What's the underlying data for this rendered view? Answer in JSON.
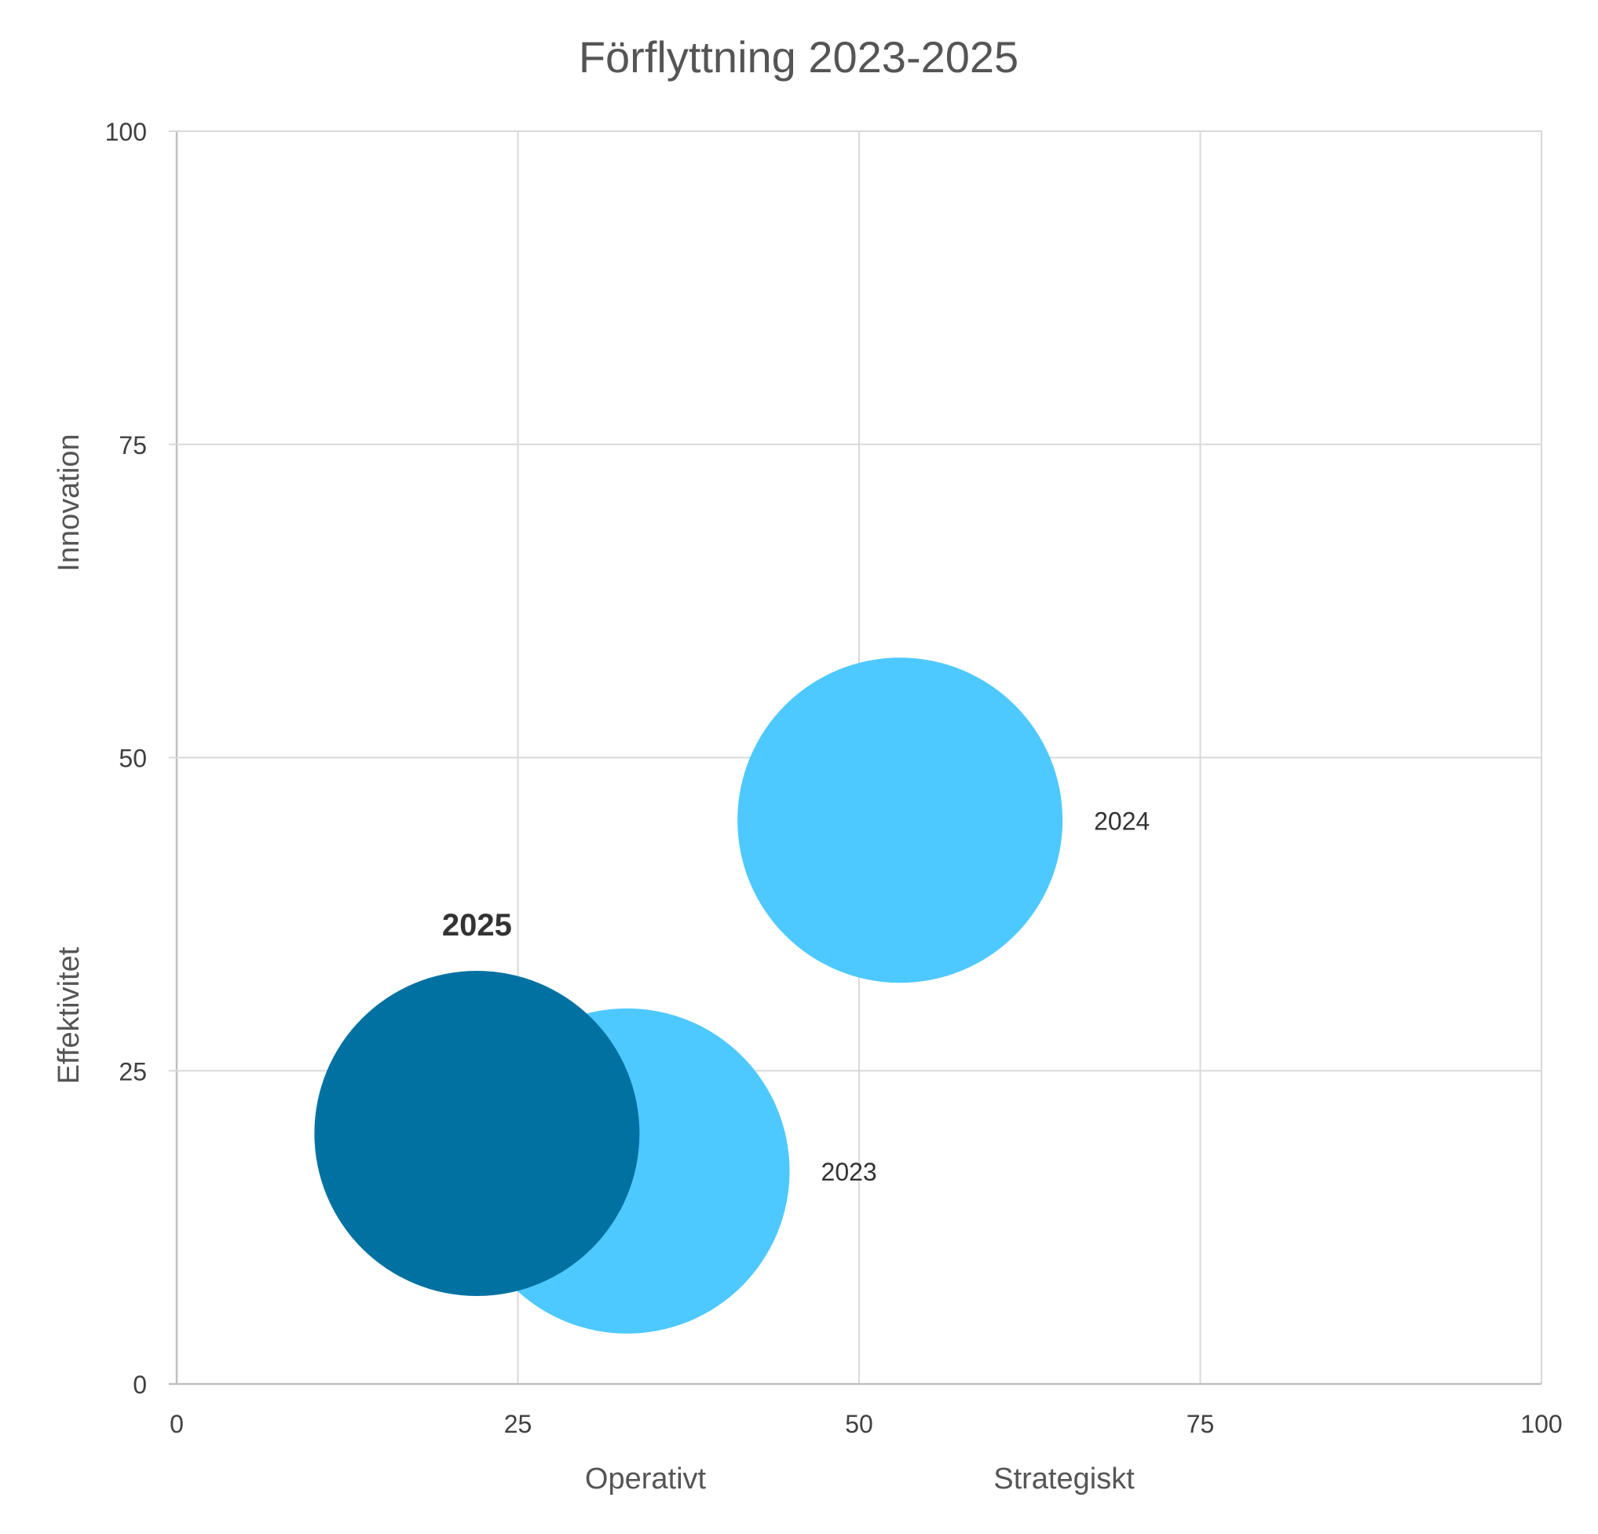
{
  "chart_data": {
    "type": "scatter",
    "title": "Förflyttning 2023-2025",
    "x_labels": [
      "Operativt",
      "Strategiskt"
    ],
    "y_labels": [
      "Innovation",
      "Effektivitet"
    ],
    "xlim": [
      0,
      100
    ],
    "ylim": [
      0,
      100
    ],
    "x_ticks": [
      "0",
      "25",
      "50",
      "75",
      "100"
    ],
    "y_ticks": [
      "0",
      "25",
      "50",
      "75",
      "100"
    ],
    "grid": true,
    "points": [
      {
        "label": "2023",
        "x": 33,
        "y": 17,
        "size": 1,
        "color": "#4dc9ff",
        "label_bold": false
      },
      {
        "label": "2024",
        "x": 53,
        "y": 45,
        "size": 1,
        "color": "#4dc9ff",
        "label_bold": false
      },
      {
        "label": "2025",
        "x": 22,
        "y": 20,
        "size": 1,
        "color": "#0071a1",
        "label_bold": true
      }
    ]
  }
}
